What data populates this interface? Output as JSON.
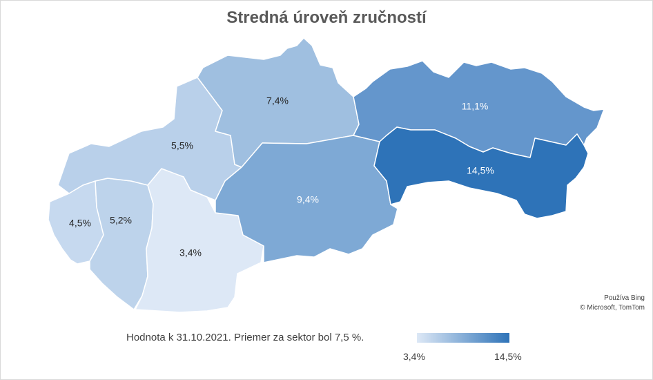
{
  "title": "Stredná úroveň zručností",
  "regions": [
    {
      "label": "4,5%",
      "value": 4.5,
      "color": "#c6d9ef",
      "text_color": "#262626"
    },
    {
      "label": "5,2%",
      "value": 5.2,
      "color": "#bdd3eb",
      "text_color": "#262626"
    },
    {
      "label": "3,4%",
      "value": 3.4,
      "color": "#dde8f6",
      "text_color": "#262626"
    },
    {
      "label": "5,5%",
      "value": 5.5,
      "color": "#b9d0ea",
      "text_color": "#262626"
    },
    {
      "label": "7,4%",
      "value": 7.4,
      "color": "#9fbfe0",
      "text_color": "#262626"
    },
    {
      "label": "9,4%",
      "value": 9.4,
      "color": "#7ea9d5",
      "text_color": "#ffffff"
    },
    {
      "label": "11,1%",
      "value": 11.1,
      "color": "#6496cc",
      "text_color": "#ffffff"
    },
    {
      "label": "14,5%",
      "value": 14.5,
      "color": "#2e73b8",
      "text_color": "#ffffff"
    }
  ],
  "attribution": {
    "line1": "Používa Bing",
    "line2": "© Microsoft, TomTom"
  },
  "note": "Hodnota k 31.10.2021. Priemer za sektor bol 7,5 %.",
  "legend": {
    "min_label": "3,4%",
    "max_label": "14,5%",
    "min_color": "#dde8f6",
    "max_color": "#2e73b8"
  }
}
